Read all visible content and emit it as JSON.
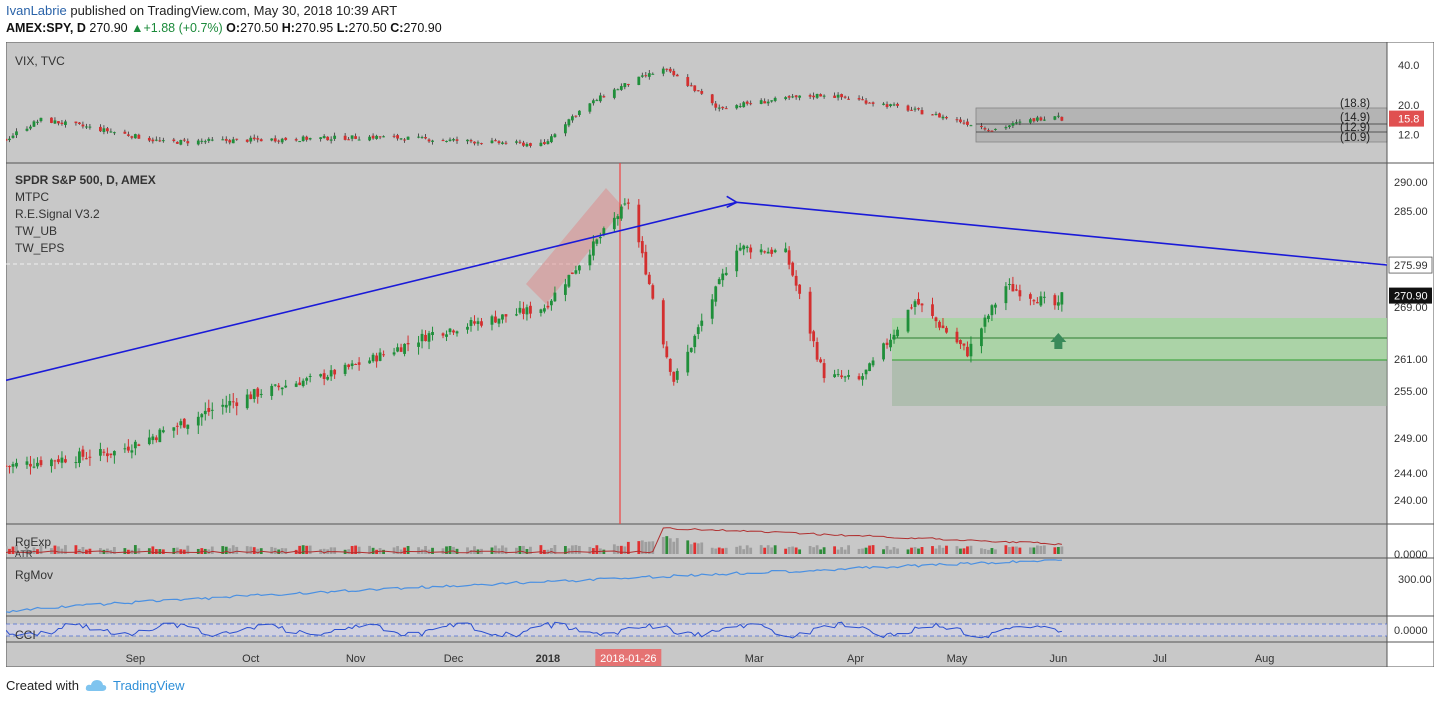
{
  "header": {
    "user": "IvanLabrie",
    "published": "published on TradingView.com, May 30, 2018 10:39 ART",
    "symbol": "AMEX:SPY, D",
    "price": "270.90",
    "change": "+1.88 (+0.7%)",
    "o_label": "O:",
    "o": "270.50",
    "h_label": "H:",
    "h": "270.95",
    "l_label": "L:",
    "l": "270.50",
    "c_label": "C:",
    "c": "270.90"
  },
  "panes": {
    "vix": {
      "title": "VIX, TVC",
      "ticks": [
        "40.0",
        "20.0",
        "12.0"
      ],
      "levels": [
        "(18.8)",
        "(14.9)",
        "(12.9)",
        "(10.9)"
      ],
      "last": "15.8"
    },
    "main": {
      "labels": [
        "SPDR S&P 500, D, AMEX",
        "MTPC",
        "R.E.Signal V3.2",
        "TW_UB",
        "TW_EPS"
      ],
      "ticks": [
        "290.00",
        "285.00",
        "275.99",
        "270.90",
        "269.00",
        "261.00",
        "255.00",
        "249.00",
        "244.00",
        "240.00"
      ]
    },
    "rgexp": {
      "title": "RgExp",
      "sub": "ATR",
      "tick": "0.0000"
    },
    "rgmov": {
      "title": "RgMov",
      "tick": "300.00"
    },
    "cci": {
      "title": "CCI",
      "tick": "0.0000"
    }
  },
  "chart_data": {
    "type": "candlestick",
    "symbol": "AMEX:SPY",
    "timeframe": "D",
    "x_axis_labels": [
      "Sep",
      "Oct",
      "Nov",
      "Dec",
      "2018",
      "2018-01-26",
      "Mar",
      "Apr",
      "May",
      "Jun",
      "Jul",
      "Aug"
    ],
    "highlighted_date": "2018-01-26",
    "last_close": 270.9,
    "resistance_level": 275.99,
    "trend_lines": [
      {
        "from_date": "2017-08-01",
        "from": 257,
        "to_date": "2018-02-26",
        "to": 286.5
      },
      {
        "from_date": "2018-02-26",
        "from": 286.5,
        "to_date": "2018-08-31",
        "to": 276
      }
    ],
    "price_key_points": [
      {
        "date": "2017-08-01",
        "close": 245
      },
      {
        "date": "2017-09-01",
        "close": 247
      },
      {
        "date": "2017-10-01",
        "close": 253
      },
      {
        "date": "2017-11-01",
        "close": 258
      },
      {
        "date": "2017-12-01",
        "close": 265
      },
      {
        "date": "2018-01-02",
        "close": 269
      },
      {
        "date": "2018-01-26",
        "close": 286.5
      },
      {
        "date": "2018-02-08",
        "close": 257
      },
      {
        "date": "2018-02-26",
        "close": 279
      },
      {
        "date": "2018-03-12",
        "close": 278
      },
      {
        "date": "2018-03-23",
        "close": 258
      },
      {
        "date": "2018-04-02",
        "close": 257
      },
      {
        "date": "2018-04-18",
        "close": 270
      },
      {
        "date": "2018-05-03",
        "close": 262
      },
      {
        "date": "2018-05-14",
        "close": 272.5
      },
      {
        "date": "2018-05-29",
        "close": 269
      },
      {
        "date": "2018-05-30",
        "close": 270.9
      }
    ],
    "vix_key_points": [
      {
        "date": "2017-08-01",
        "value": 11
      },
      {
        "date": "2017-08-11",
        "value": 15.5
      },
      {
        "date": "2017-09-15",
        "value": 10.5
      },
      {
        "date": "2017-11-15",
        "value": 11.5
      },
      {
        "date": "2018-01-02",
        "value": 10
      },
      {
        "date": "2018-02-05",
        "value": 37
      },
      {
        "date": "2018-02-20",
        "value": 19
      },
      {
        "date": "2018-03-23",
        "value": 24
      },
      {
        "date": "2018-04-10",
        "value": 20
      },
      {
        "date": "2018-05-10",
        "value": 13
      },
      {
        "date": "2018-05-29",
        "value": 17
      },
      {
        "date": "2018-05-30",
        "value": 15.8
      }
    ],
    "vix_levels": [
      18.8,
      14.9,
      12.9,
      10.9
    ]
  }
}
